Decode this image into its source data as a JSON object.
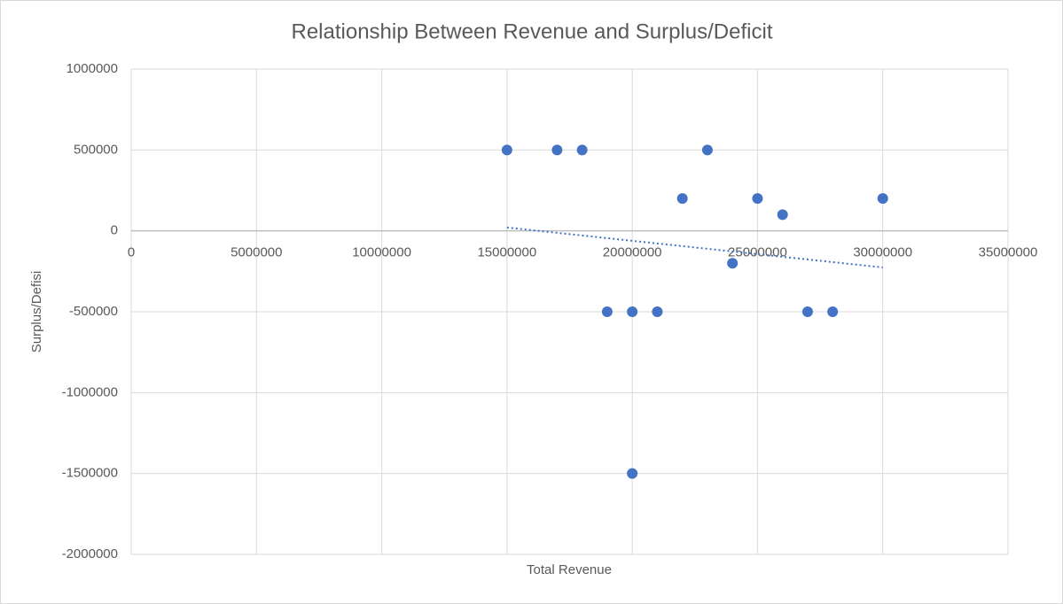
{
  "chart_data": {
    "type": "scatter",
    "title": "Relationship Between Revenue and Surplus/Deficit",
    "x_label": "Total Revenue",
    "y_label": "Surplus/Defisi",
    "x": [
      15000000,
      17000000,
      18000000,
      19000000,
      20000000,
      20000000,
      21000000,
      22000000,
      23000000,
      24000000,
      25000000,
      26000000,
      27000000,
      28000000,
      30000000
    ],
    "values": [
      500000,
      500000,
      500000,
      -500000,
      -500000,
      -1500000,
      -500000,
      200000,
      500000,
      -200000,
      200000,
      100000,
      -500000,
      -500000,
      200000
    ],
    "color": "#4472c4",
    "xlim": [
      0,
      35000000
    ],
    "xticks": [
      0,
      5000000,
      10000000,
      15000000,
      20000000,
      25000000,
      30000000,
      35000000
    ],
    "ylim": [
      -2000000,
      1000000
    ],
    "yticks": [
      -2000000,
      -1500000,
      -1000000,
      -500000,
      0,
      500000,
      1000000
    ],
    "grid": true,
    "trendline": "linear"
  }
}
